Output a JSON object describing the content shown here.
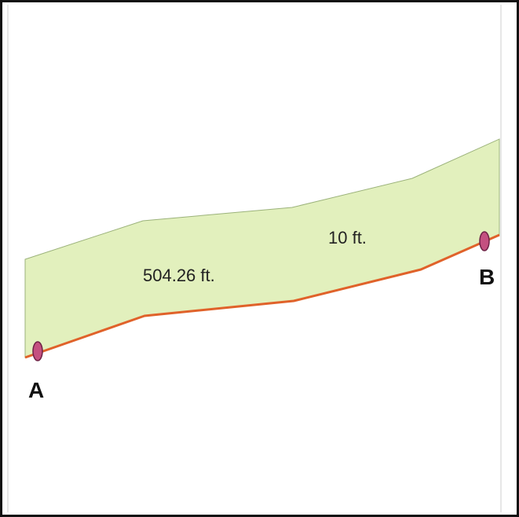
{
  "diagram": {
    "length_label": "504.26 ft.",
    "width_label": "10 ft.",
    "point_a_label": "A",
    "point_b_label": "B"
  },
  "colors": {
    "strip_fill": "#e2f0bd",
    "strip_edge": "#9bb27a",
    "boundary_line": "#e0622a",
    "marker_fill": "#c45080",
    "marker_stroke": "#6e2246",
    "frame_border": "#111111",
    "inner_rule": "#cfcfcf"
  }
}
